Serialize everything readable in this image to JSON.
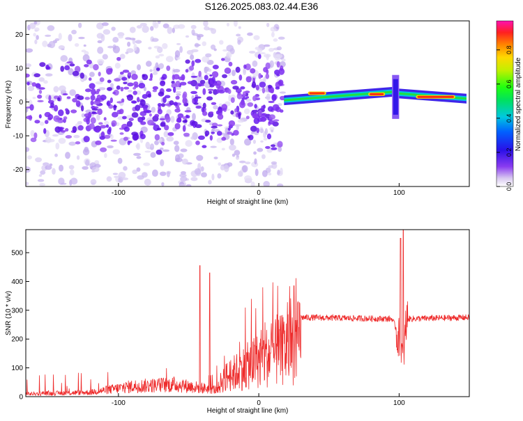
{
  "title": "S126.2025.083.02.44.E36",
  "chart_data": [
    {
      "type": "heatmap",
      "xlabel": "Height of straight line (km)",
      "ylabel": "Frequency (Hz)",
      "xlim": [
        -166,
        150
      ],
      "ylim": [
        -25,
        24
      ],
      "xticks": [
        -100,
        0,
        100
      ],
      "yticks": [
        -20,
        -10,
        0,
        10,
        20
      ],
      "colorbar": {
        "label": "Normalized spectral amplitude",
        "range": [
          0,
          0.97
        ],
        "ticks": [
          0.0,
          0.2,
          0.4,
          0.6,
          0.8
        ],
        "tick_labels": [
          "0.0",
          "0.2",
          "0.4",
          "0.6",
          "0.8"
        ]
      },
      "features": {
        "noise_region_x": [
          -166,
          18
        ],
        "tone_segments": [
          {
            "x": [
              18,
              95
            ],
            "freq": [
              0.5,
              3.0
            ]
          },
          {
            "x": [
              95,
              100
            ],
            "freq": [
              -5,
              8
            ]
          },
          {
            "x": [
              100,
              148
            ],
            "freq": [
              2.5,
              1.0
            ]
          }
        ],
        "peak_patches": [
          {
            "x": [
              35,
              48
            ],
            "freq": 2.6
          },
          {
            "x": [
              78,
              90
            ],
            "freq": 2.3
          },
          {
            "x": [
              112,
              140
            ],
            "freq": 1.5
          }
        ]
      }
    },
    {
      "type": "line",
      "xlabel": "Height of straight line (km)",
      "ylabel": "SNR (10 * v/v)",
      "xlim": [
        -166,
        150
      ],
      "ylim": [
        0,
        580
      ],
      "xticks": [
        -100,
        0,
        100
      ],
      "yticks": [
        0,
        100,
        200,
        300,
        400,
        500
      ],
      "color": "#ee2b2b",
      "series_envelope": [
        {
          "x": -166,
          "y": 15
        },
        {
          "x": -120,
          "y": 25
        },
        {
          "x": -90,
          "y": 60
        },
        {
          "x": -60,
          "y": 70
        },
        {
          "x": -30,
          "y": 40
        },
        {
          "x": -25,
          "y": 90
        },
        {
          "x": 0,
          "y": 180
        },
        {
          "x": 20,
          "y": 240
        },
        {
          "x": 30,
          "y": 275
        },
        {
          "x": 95,
          "y": 270
        },
        {
          "x": 101,
          "y": 200
        },
        {
          "x": 103,
          "y": 130
        },
        {
          "x": 105,
          "y": 270
        },
        {
          "x": 150,
          "y": 275
        }
      ],
      "peaks": [
        {
          "x": -42,
          "y": 455
        },
        {
          "x": -35,
          "y": 430
        },
        {
          "x": 25,
          "y": 385
        },
        {
          "x": 101,
          "y": 550
        },
        {
          "x": 103,
          "y": 580
        }
      ]
    }
  ]
}
